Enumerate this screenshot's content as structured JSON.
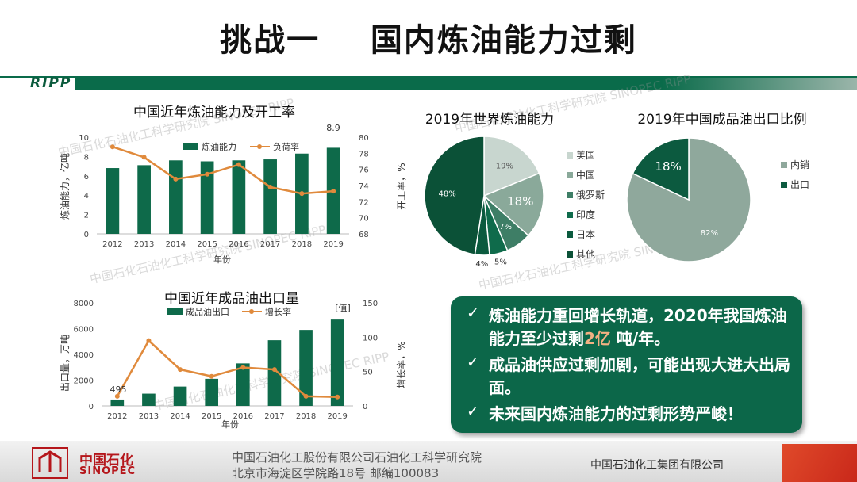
{
  "slide": {
    "title": "挑战一    国内炼油能力过剩",
    "brand": "RIPP",
    "watermark_cn": "中国石化石油化工科学研究院",
    "watermark_en": "SINOPEC RIPP"
  },
  "chart_data": [
    {
      "id": "capacity",
      "type": "bar+line",
      "title": "中国近年炼油能力及开工率",
      "categories": [
        "2012",
        "2013",
        "2014",
        "2015",
        "2016",
        "2017",
        "2018",
        "2019"
      ],
      "series": [
        {
          "name": "炼油能力",
          "axis": "left",
          "type": "bar",
          "values": [
            6.8,
            7.1,
            7.6,
            7.5,
            7.6,
            7.7,
            8.3,
            8.9
          ]
        },
        {
          "name": "负荷率",
          "axis": "right",
          "type": "line",
          "values": [
            78.8,
            77.5,
            74.8,
            75.4,
            76.6,
            73.8,
            73.0,
            73.3
          ]
        }
      ],
      "xlabel": "年份",
      "ylabel_left": "炼油能力，亿吨",
      "ylabel_right": "开工率，%",
      "ylim_left": [
        0,
        10
      ],
      "ylim_right": [
        68,
        80
      ],
      "yticks_left": [
        "0",
        "2",
        "4",
        "6",
        "8",
        "10"
      ],
      "yticks_right": [
        "68",
        "70",
        "72",
        "74",
        "76",
        "78",
        "80"
      ],
      "data_label": "8.9"
    },
    {
      "id": "export",
      "type": "bar+line",
      "title": "中国近年成品油出口量",
      "categories": [
        "2012",
        "2013",
        "2014",
        "2015",
        "2016",
        "2017",
        "2018",
        "2019"
      ],
      "series": [
        {
          "name": "成品油出口",
          "axis": "left",
          "type": "bar",
          "values": [
            495,
            950,
            1500,
            2100,
            3300,
            5100,
            5900,
            6700
          ]
        },
        {
          "name": "增长率",
          "axis": "right",
          "type": "line",
          "values": [
            14,
            95,
            53,
            43,
            56,
            53,
            14,
            13
          ]
        }
      ],
      "xlabel": "年份",
      "ylabel_left": "出口量，万吨",
      "ylabel_right": "增长率，%",
      "ylim_left": [
        0,
        8000
      ],
      "ylim_right": [
        0,
        150
      ],
      "yticks_left": [
        "0",
        "2000",
        "4000",
        "6000",
        "8000"
      ],
      "yticks_right": [
        "0",
        "50",
        "100",
        "150"
      ],
      "data_label": "495",
      "bracket_label": "[值]"
    },
    {
      "id": "world",
      "type": "pie",
      "title": "2019年世界炼油能力",
      "labels": [
        "美国",
        "中国",
        "俄罗斯",
        "印度",
        "日本",
        "其他"
      ],
      "values": [
        19,
        18,
        7,
        5,
        4,
        48
      ],
      "value_labels": [
        "19%",
        "18%",
        "7%",
        "5%",
        "4%",
        "48%"
      ],
      "colors": [
        "#c8d6cf",
        "#8aa99a",
        "#3e7e66",
        "#0f6b4b",
        "#0a5a3e",
        "#0b5137"
      ]
    },
    {
      "id": "china_oil",
      "type": "pie",
      "title": "2019年中国成品油出口比例",
      "labels": [
        "内销",
        "出口"
      ],
      "values": [
        82,
        18
      ],
      "value_labels": [
        "82%",
        "18%"
      ],
      "colors": [
        "#8fa89c",
        "#0c5a3f"
      ]
    }
  ],
  "callout": {
    "check": "✓",
    "bullet1_a": "炼油能力重回增长轨道，2020年我国炼油能力至少过剩",
    "bullet1_hl": "2亿",
    "bullet1_b": " 吨/年。",
    "bullet2": "成品油供应过剩加剧，可能出现大进大出局面。",
    "bullet3": "未来国内炼油能力的过剩形势严峻！"
  },
  "footer": {
    "logo_cn": "中国石化",
    "logo_en": "SINOPEC",
    "line1": "中国石油化工股份有限公司石油化工科学研究院",
    "line2": "北京市海淀区学院路18号   邮编100083",
    "group": "中国石油化工集团有限公司"
  }
}
